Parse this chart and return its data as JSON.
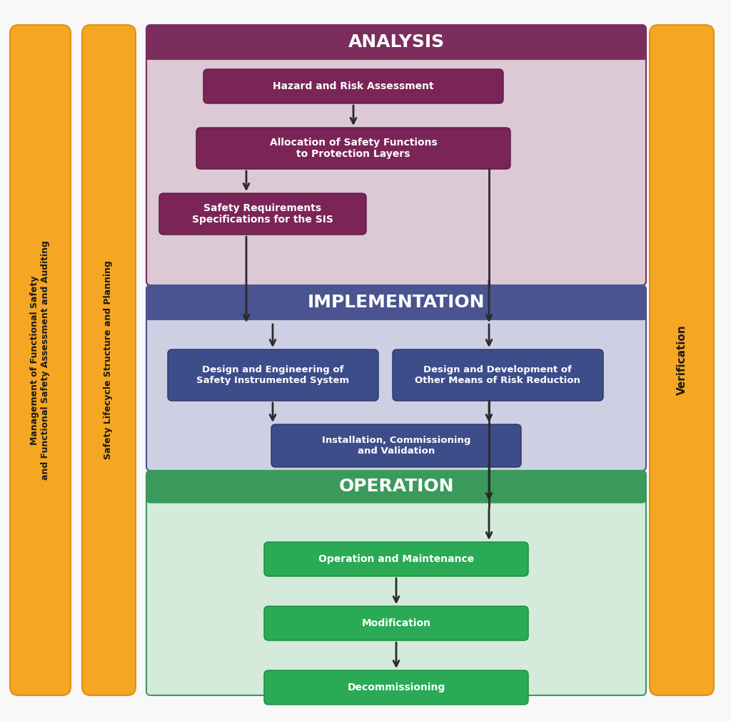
{
  "figure_bg": "#f8f8f8",
  "sidebar_color": "#f5a623",
  "sidebar_border": "#e09010",
  "sidebar_left1_text": "Management of Functional Safety\nand Functional Safety Assessment and Auditing",
  "sidebar_left2_text": "Safety Lifecycle Structure and Planning",
  "sidebar_right_text": "Verification",
  "analysis_header_color": "#7b2d5e",
  "analysis_bg_color": "#ddc8d5",
  "analysis_title": "ANALYSIS",
  "analysis_box_color": "#7b2458",
  "analysis_boxes": [
    "Hazard and Risk Assessment",
    "Allocation of Safety Functions\nto Protection Layers",
    "Safety Requirements\nSpecifications for the SIS"
  ],
  "impl_header_color": "#4a5490",
  "impl_bg_color": "#cdd0e3",
  "impl_title": "IMPLEMENTATION",
  "impl_box_color": "#3d4d8a",
  "impl_boxes_left": "Design and Engineering of\nSafety Instrumented System",
  "impl_boxes_right": "Design and Development of\nOther Means of Risk Reduction",
  "impl_box_bottom": "Installation, Commissioning\nand Validation",
  "op_header_color": "#3a9a5c",
  "op_bg_color": "#d4eadb",
  "op_title": "OPERATION",
  "op_box_color": "#2aaa54",
  "op_boxes": [
    "Operation and Maintenance",
    "Modification",
    "Decommissioning"
  ],
  "arrow_color": "#2a2a2a",
  "text_white": "#ffffff",
  "text_dark": "#1a1a1a",
  "outer_border": "#aaaaaa"
}
